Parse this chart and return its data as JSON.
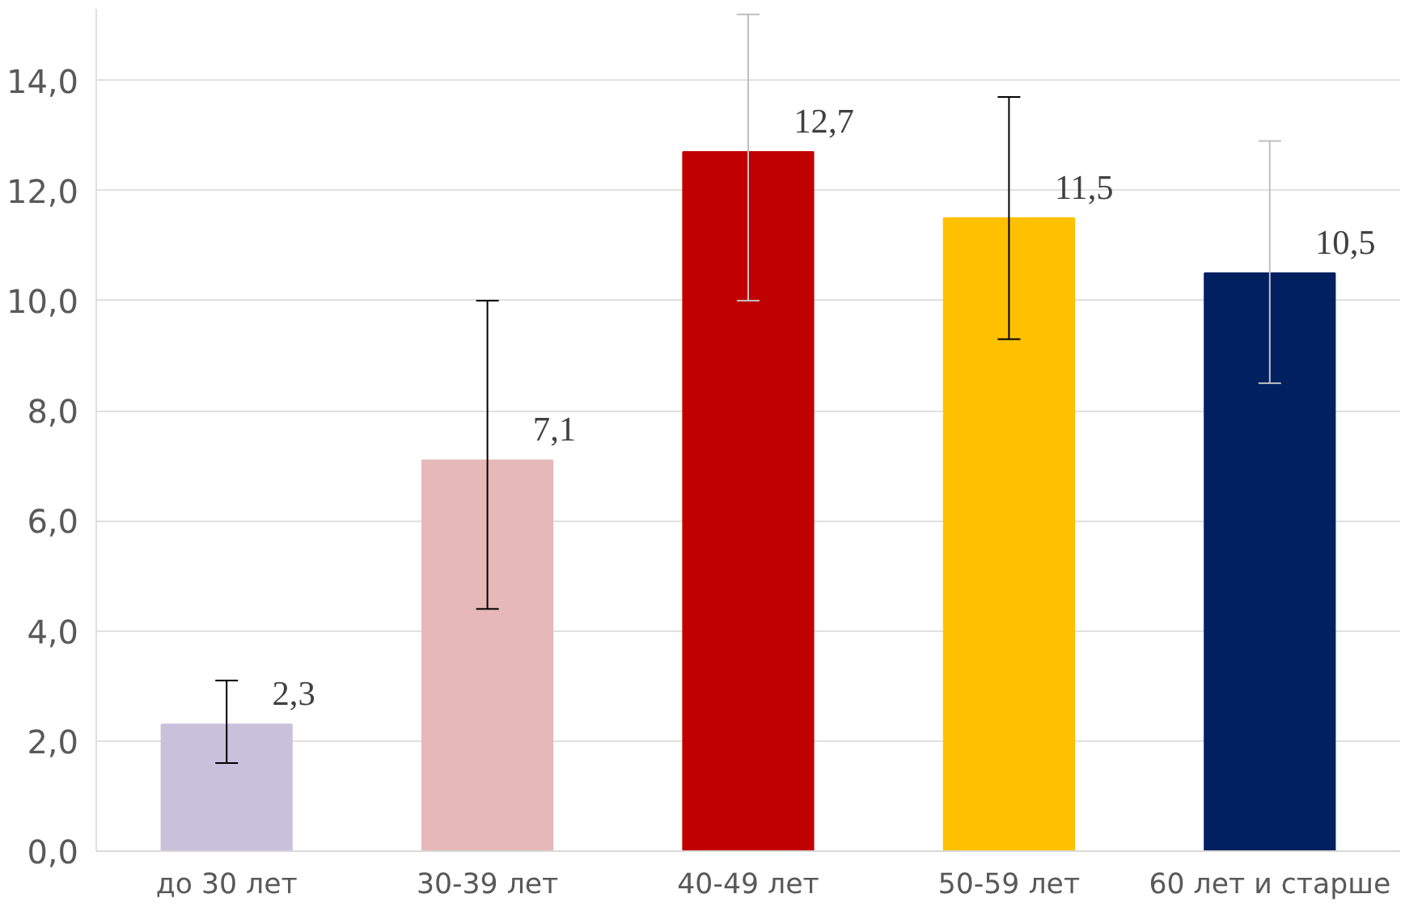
{
  "chart_data": {
    "type": "bar",
    "categories": [
      "до 30 лет",
      "30-39 лет",
      "40-49 лет",
      "50-59 лет",
      "60 лет и старше"
    ],
    "values": [
      2.3,
      7.1,
      12.7,
      11.5,
      10.5
    ],
    "colors": [
      "#c9c0dc",
      "#e6b8b7",
      "#c00000",
      "#ffc000",
      "#002060"
    ],
    "errors": [
      [
        1.6,
        3.1
      ],
      [
        4.4,
        10.0
      ],
      [
        10.0,
        15.2
      ],
      [
        9.3,
        13.7
      ],
      [
        8.5,
        12.9
      ]
    ],
    "value_labels": [
      "2,3",
      "7,1",
      "12,7",
      "11,5",
      "10,5"
    ],
    "ylim": [
      0,
      15.3
    ],
    "yticks": [
      {
        "value": 0,
        "label": "0,0"
      },
      {
        "value": 2,
        "label": "2,0"
      },
      {
        "value": 4,
        "label": "4,0"
      },
      {
        "value": 6,
        "label": "6,0"
      },
      {
        "value": 8,
        "label": "8,0"
      },
      {
        "value": 10,
        "label": "10,0"
      },
      {
        "value": 12,
        "label": "12,0"
      },
      {
        "value": 14,
        "label": "14,0"
      }
    ],
    "grid": "y"
  }
}
